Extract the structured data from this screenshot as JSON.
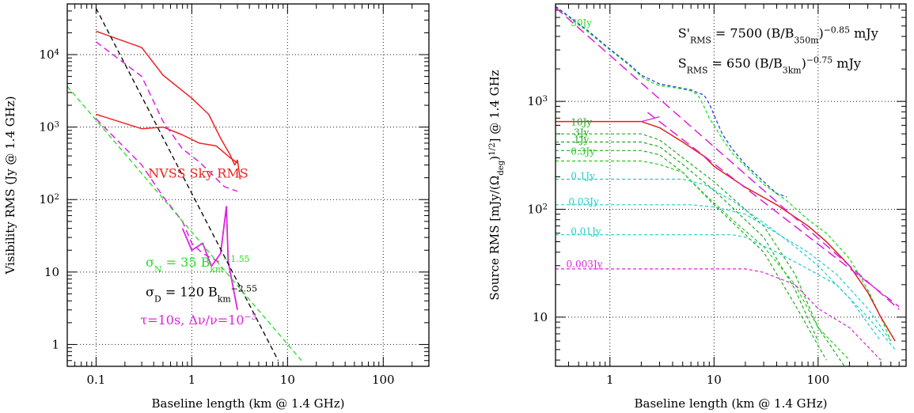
{
  "chart_data": [
    {
      "type": "line",
      "xlabel": "Baseline length (km @ 1.4 GHz)",
      "ylabel": "Visibility RMS (Jy @ 1.4 GHz)",
      "xscale": "log",
      "yscale": "log",
      "xlim": [
        0.05,
        300
      ],
      "ylim": [
        0.5,
        50000
      ],
      "grid": true,
      "xticks": [
        {
          "value": 0.1,
          "label": "0.1"
        },
        {
          "value": 1,
          "label": "1"
        },
        {
          "value": 10,
          "label": "10"
        },
        {
          "value": 100,
          "label": "100"
        }
      ],
      "yticks": [
        {
          "value": 1,
          "label": "1"
        },
        {
          "value": 10,
          "label": "10"
        },
        {
          "value": 100,
          "label": "10",
          "sup": "2"
        },
        {
          "value": 1000,
          "label": "10",
          "sup": "3"
        },
        {
          "value": 10000,
          "label": "10",
          "sup": "4"
        }
      ],
      "annotations": [
        {
          "color": "#ee2222",
          "at": [
            0.35,
            200
          ],
          "parts": [
            [
              "NVSS Sky RMS",
              ""
            ]
          ]
        },
        {
          "color": "#dd22dd",
          "at": [
            0.29,
            1.9
          ],
          "parts": [
            [
              "τ=10s, Δν/ν=10",
              ""
            ],
            [
              "−3",
              "sup"
            ]
          ]
        },
        {
          "color": "#000000",
          "at": [
            0.33,
            4.6
          ],
          "parts": [
            [
              "σ",
              ""
            ],
            [
              "D",
              "sub"
            ],
            [
              " = 120 B",
              ""
            ],
            [
              "km",
              "sub"
            ],
            [
              "−2.55",
              "sup"
            ]
          ]
        },
        {
          "color": "#22dd22",
          "at": [
            0.33,
            11.8
          ],
          "parts": [
            [
              "σ",
              ""
            ],
            [
              "N",
              "sub"
            ],
            [
              " = 35 B",
              ""
            ],
            [
              "km",
              "sub"
            ],
            [
              "−1.55",
              "sup"
            ]
          ]
        }
      ],
      "series": [
        {
          "color": "#ee2222",
          "dash": "",
          "width": 1.5,
          "x": [
            0.1,
            0.3,
            0.5,
            1.0,
            1.5,
            2.0,
            2.5,
            2.8,
            3.0,
            3.2
          ],
          "y": [
            21000,
            12500,
            5200,
            2500,
            1500,
            700,
            420,
            300,
            350,
            190
          ]
        },
        {
          "color": "#ee2222",
          "dash": "",
          "width": 1.5,
          "x": [
            0.1,
            0.3,
            0.5,
            0.8,
            1.2,
            1.8,
            2.5,
            3.0
          ],
          "y": [
            1500,
            950,
            1000,
            780,
            600,
            550,
            380,
            320
          ]
        },
        {
          "color": "#dd22dd",
          "dash": "8 5",
          "width": 1.5,
          "x": [
            0.1,
            0.3,
            0.5,
            0.8,
            1.2,
            2.2,
            3.0
          ],
          "y": [
            15000,
            5000,
            1200,
            500,
            330,
            150,
            130
          ]
        },
        {
          "color": "#dd22dd",
          "dash": "8 5",
          "width": 1.5,
          "x": [
            0.1,
            0.3,
            0.5,
            0.8,
            1.0,
            1.3,
            2.1
          ],
          "y": [
            1300,
            300,
            110,
            50,
            25,
            18,
            13
          ]
        },
        {
          "color": "#dd22dd",
          "dash": "",
          "width": 1.8,
          "x": [
            0.8,
            1.0,
            1.3,
            1.6,
            2.0,
            2.3,
            2.4,
            2.6,
            3.0
          ],
          "y": [
            40,
            20,
            25,
            12,
            18,
            80,
            14,
            8,
            3
          ]
        },
        {
          "color": "#000000",
          "dash": "6 4",
          "width": 1.3,
          "x": [
            0.1,
            8.0
          ],
          "y": [
            43500,
            0.6
          ]
        },
        {
          "color": "#22dd22",
          "dash": "6 4",
          "width": 1.3,
          "x": [
            0.05,
            14.0
          ],
          "y": [
            3640,
            0.6
          ]
        }
      ]
    },
    {
      "type": "line",
      "xlabel": "Baseline length (km @ 1.4 GHz)",
      "ylabel_parts": [
        [
          "Source RMS [mJy/(Ω",
          ""
        ],
        [
          "deg",
          "sub"
        ],
        [
          ")",
          ""
        ],
        [
          "1/2",
          "sup"
        ],
        [
          "] @ 1.4 GHz",
          ""
        ]
      ],
      "xscale": "log",
      "yscale": "log",
      "xlim": [
        0.3,
        700
      ],
      "ylim": [
        3.5,
        8000
      ],
      "grid": true,
      "xticks": [
        {
          "value": 1,
          "label": "1"
        },
        {
          "value": 10,
          "label": "10"
        },
        {
          "value": 100,
          "label": "100"
        }
      ],
      "yticks": [
        {
          "value": 10,
          "label": "10"
        },
        {
          "value": 100,
          "label": "10",
          "sup": "2"
        },
        {
          "value": 1000,
          "label": "10",
          "sup": "3"
        }
      ],
      "annotations": [
        {
          "color": "#000000",
          "at": [
            4.5,
            3900
          ],
          "parts": [
            [
              "S'",
              ""
            ],
            [
              "RMS",
              "sub"
            ],
            [
              " = 7500 (B/B",
              ""
            ],
            [
              "350m",
              "sub"
            ],
            [
              ")",
              ""
            ],
            [
              "−0.85",
              "sup"
            ],
            [
              " mJy",
              ""
            ]
          ]
        },
        {
          "color": "#000000",
          "at": [
            4.5,
            2050
          ],
          "parts": [
            [
              "S",
              ""
            ],
            [
              "RMS",
              "sub"
            ],
            [
              " = 650 (B/B",
              ""
            ],
            [
              "3km",
              "sub"
            ],
            [
              ")",
              ""
            ],
            [
              "−0.75",
              "sup"
            ],
            [
              " mJy",
              ""
            ]
          ]
        }
      ],
      "flux_labels": [
        {
          "text": "30Jy",
          "color": "#22dd22",
          "at": [
            0.42,
            5000
          ]
        },
        {
          "text": "10Jy",
          "color": "#22aa22",
          "at": [
            0.42,
            600
          ]
        },
        {
          "text": "3Jy",
          "color": "#22aa22",
          "at": [
            0.45,
            480
          ]
        },
        {
          "text": "1Jy",
          "color": "#22aa22",
          "at": [
            0.45,
            410
          ]
        },
        {
          "text": "0.3Jy",
          "color": "#22cc22",
          "at": [
            0.42,
            320
          ]
        },
        {
          "text": "0.1Jy",
          "color": "#22cccc",
          "at": [
            0.42,
            190
          ]
        },
        {
          "text": "0.03Jy",
          "color": "#22cccc",
          "at": [
            0.4,
            110
          ]
        },
        {
          "text": "0.01Jy",
          "color": "#22cccc",
          "at": [
            0.42,
            58
          ]
        },
        {
          "text": "0.003Jy",
          "color": "#dd22dd",
          "at": [
            0.38,
            29
          ]
        }
      ],
      "series": [
        {
          "color": "#22dd22",
          "dash": "4 3",
          "width": 1.3,
          "x": [
            0.3,
            0.6,
            1.0,
            1.5,
            2.0,
            2.5,
            3.0,
            4.0,
            5.0,
            6.0,
            7.0,
            8.0,
            9.0,
            10.0,
            12.0,
            15.0,
            20.0,
            30.0,
            50.0,
            80.0,
            120.0,
            200.0,
            300.0,
            400.0,
            500.0
          ],
          "y": [
            7500,
            4500,
            3000,
            2200,
            1700,
            1500,
            1400,
            1350,
            1300,
            1250,
            1150,
            900,
            700,
            600,
            450,
            330,
            250,
            170,
            120,
            80,
            60,
            35,
            18,
            10,
            6
          ]
        },
        {
          "color": "#2244dd",
          "dash": "4 3",
          "width": 1.3,
          "x": [
            0.3,
            0.6,
            1.0,
            1.5,
            2.0,
            3.0,
            4.0,
            5.0,
            6.0,
            7.0,
            8.0,
            9.0,
            10.0,
            12.0,
            15.0,
            20.0,
            30.0,
            40.0,
            50.0
          ],
          "y": [
            7600,
            4600,
            3050,
            2250,
            1750,
            1450,
            1380,
            1320,
            1280,
            1200,
            1150,
            950,
            750,
            500,
            360,
            260,
            180,
            140,
            130
          ]
        },
        {
          "color": "#dd2222",
          "dash": "",
          "width": 1.5,
          "x": [
            0.3,
            1.0,
            2.0,
            3.0,
            5.0,
            8.0,
            10.0,
            20.0,
            40.0,
            80.0,
            120.0,
            200.0,
            300.0,
            400.0,
            550.0
          ],
          "y": [
            650,
            650,
            650,
            570,
            420,
            310,
            250,
            160,
            110,
            70,
            50,
            30,
            17,
            10,
            6
          ]
        },
        {
          "color": "#dd22dd",
          "dash": "12 6",
          "width": 1.5,
          "x": [
            0.3,
            600.0
          ],
          "y": [
            7400,
            11.8
          ]
        },
        {
          "color": "#dd22dd",
          "dash": "12 6",
          "width": 1.5,
          "x": [
            2.3,
            600.0
          ],
          "y": [
            790,
            12.5
          ]
        },
        {
          "color": "#dd22dd",
          "dash": "",
          "width": 1.3,
          "x": [
            2.0,
            3.0
          ],
          "y": [
            650,
            720
          ]
        },
        {
          "color": "#22aa22",
          "dash": "4 3",
          "width": 1.2,
          "x": [
            0.3,
            1.5,
            2.0,
            3.0,
            5.0,
            10.0,
            30.0,
            60.0,
            100.0,
            200.0
          ],
          "y": [
            500,
            500,
            500,
            440,
            300,
            180,
            70,
            25,
            8,
            3
          ]
        },
        {
          "color": "#22aa22",
          "dash": "4 3",
          "width": 1.2,
          "x": [
            0.3,
            1.5,
            2.0,
            3.0,
            5.0,
            10.0,
            30.0,
            60.0,
            100.0
          ],
          "y": [
            420,
            420,
            420,
            380,
            260,
            150,
            55,
            18,
            6
          ]
        },
        {
          "color": "#22aa22",
          "dash": "4 3",
          "width": 1.2,
          "x": [
            0.3,
            1.5,
            2.0,
            3.0,
            5.0,
            10.0,
            30.0,
            60.0,
            120.0
          ],
          "y": [
            350,
            350,
            350,
            320,
            220,
            110,
            40,
            13,
            4
          ]
        },
        {
          "color": "#22cc22",
          "dash": "4 3",
          "width": 1.2,
          "x": [
            0.3,
            2.0,
            3.0,
            5.0,
            8.0,
            15.0,
            30.0,
            60.0,
            100.0,
            200.0
          ],
          "y": [
            280,
            280,
            260,
            220,
            140,
            80,
            45,
            20,
            8,
            4
          ]
        },
        {
          "color": "#22cccc",
          "dash": "4 3",
          "width": 1.2,
          "x": [
            0.3,
            3.0,
            5.0,
            8.0,
            15.0,
            30.0,
            60.0,
            100.0,
            200.0,
            400.0
          ],
          "y": [
            190,
            190,
            190,
            170,
            120,
            75,
            45,
            30,
            15,
            6
          ]
        },
        {
          "color": "#22cccc",
          "dash": "4 3",
          "width": 1.2,
          "x": [
            0.3,
            6.0,
            10.0,
            20.0,
            40.0,
            80.0,
            150.0,
            300.0,
            500.0
          ],
          "y": [
            110,
            110,
            105,
            90,
            60,
            40,
            25,
            12,
            6
          ]
        },
        {
          "color": "#22cccc",
          "dash": "4 3",
          "width": 1.2,
          "x": [
            0.3,
            15.0,
            20.0,
            40.0,
            80.0,
            150.0,
            300.0,
            550.0
          ],
          "y": [
            58,
            58,
            55,
            40,
            28,
            20,
            10,
            5
          ]
        },
        {
          "color": "#dd22dd",
          "dash": "4 3",
          "width": 1.2,
          "x": [
            0.3,
            20.0,
            30.0,
            60.0,
            100.0,
            200.0,
            400.0
          ],
          "y": [
            28,
            28,
            26,
            20,
            12,
            8,
            4
          ]
        }
      ]
    }
  ]
}
